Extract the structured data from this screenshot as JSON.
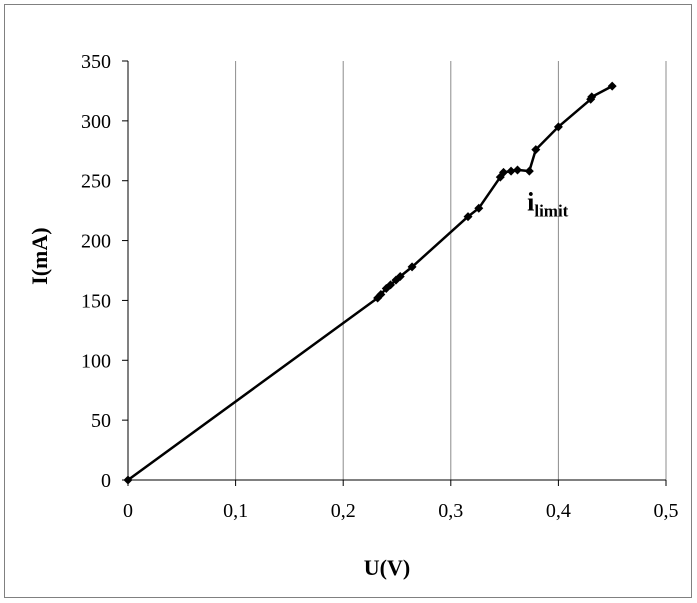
{
  "chart_data": {
    "type": "scatter",
    "xlabel": "U(V)",
    "ylabel": "I(mA)",
    "xlim": [
      0,
      0.5
    ],
    "ylim": [
      0,
      350
    ],
    "x_ticks": [
      "0",
      "0,1",
      "0,2",
      "0,3",
      "0,4",
      "0,5"
    ],
    "y_ticks": [
      "0",
      "50",
      "100",
      "150",
      "200",
      "250",
      "300",
      "350"
    ],
    "grid": "vertical",
    "annotation": {
      "main": "i",
      "sub": "limit"
    },
    "series": [
      {
        "marker": "diamond",
        "line": "solid",
        "color": "#000000",
        "points": [
          [
            0.0,
            0
          ],
          [
            0.232,
            152
          ],
          [
            0.235,
            155
          ],
          [
            0.24,
            160
          ],
          [
            0.244,
            163
          ],
          [
            0.249,
            167
          ],
          [
            0.253,
            170
          ],
          [
            0.264,
            178
          ],
          [
            0.316,
            220
          ],
          [
            0.326,
            227
          ],
          [
            0.346,
            253
          ],
          [
            0.349,
            257
          ],
          [
            0.356,
            258
          ],
          [
            0.362,
            259
          ],
          [
            0.373,
            258
          ],
          [
            0.379,
            276
          ],
          [
            0.4,
            295
          ],
          [
            0.43,
            318
          ],
          [
            0.431,
            320
          ],
          [
            0.45,
            329
          ]
        ]
      }
    ]
  }
}
